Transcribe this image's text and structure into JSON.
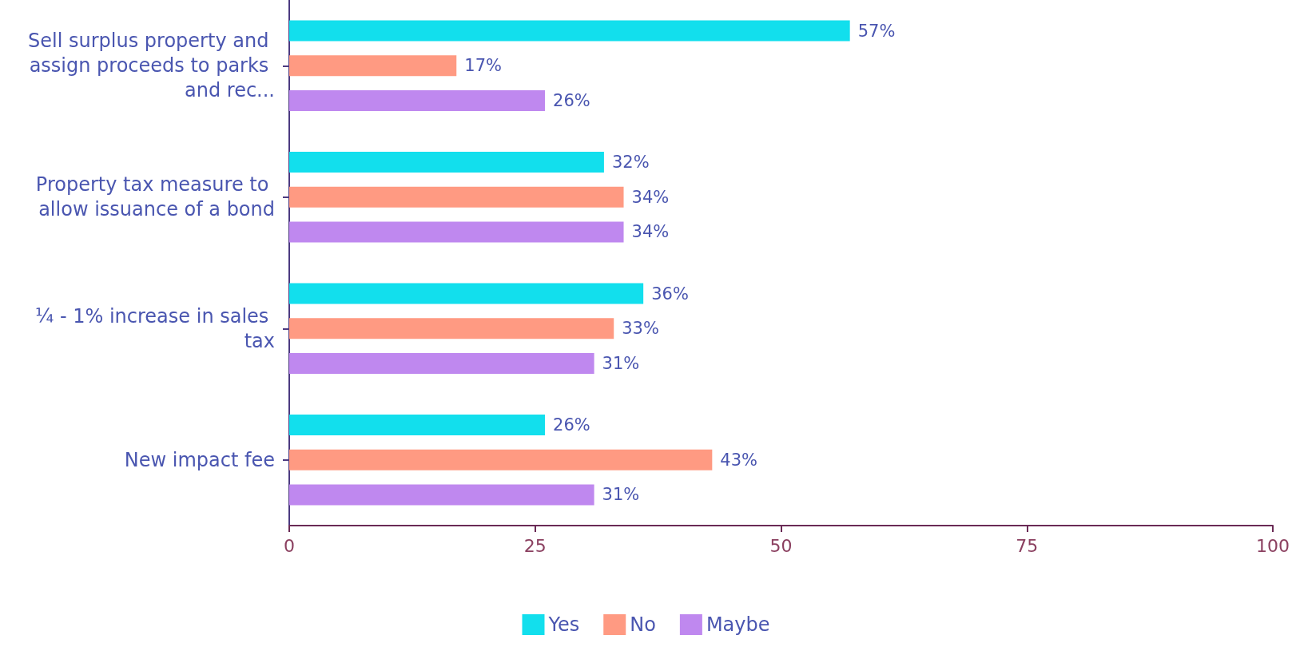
{
  "chart_data": {
    "type": "bar",
    "orientation": "horizontal",
    "categories": [
      "Sell surplus property and assign proceeds to parks and rec...",
      "Property tax measure to allow issuance of a bond",
      "¼ - 1% increase in sales tax",
      "New impact fee"
    ],
    "series": [
      {
        "name": "Yes",
        "color": "#12dfed",
        "values": [
          57,
          32,
          36,
          26
        ],
        "value_labels": [
          "57%",
          "32%",
          "36%",
          "26%"
        ]
      },
      {
        "name": "No",
        "color": "#ff9a82",
        "values": [
          17,
          34,
          33,
          43
        ],
        "value_labels": [
          "17%",
          "34%",
          "33%",
          "43%"
        ]
      },
      {
        "name": "Maybe",
        "color": "#bf88ef",
        "values": [
          26,
          34,
          31,
          31
        ],
        "value_labels": [
          "26%",
          "34%",
          "31%",
          "31%"
        ]
      }
    ],
    "xlim": [
      0,
      100
    ],
    "xticks": [
      0,
      25,
      50,
      75,
      100
    ],
    "grid": false,
    "legend": "bottom"
  }
}
